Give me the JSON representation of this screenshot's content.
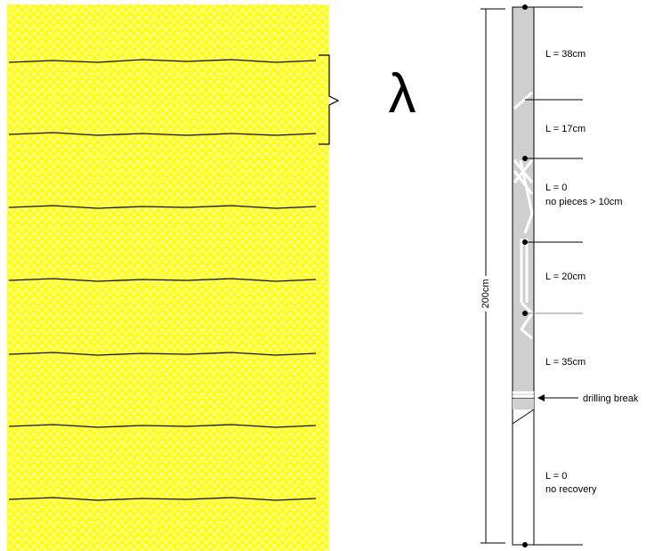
{
  "symbol": "λ",
  "total_length": "200cm",
  "intervals": [
    {
      "label": "L = 38cm"
    },
    {
      "label": "L = 17cm"
    },
    {
      "label": "L = 0",
      "note": "no pieces > 10cm"
    },
    {
      "label": "L = 20cm"
    },
    {
      "label": "L = 35cm"
    },
    {
      "label": "L = 0",
      "note": "no recovery"
    }
  ],
  "drilling_break": "drilling break"
}
